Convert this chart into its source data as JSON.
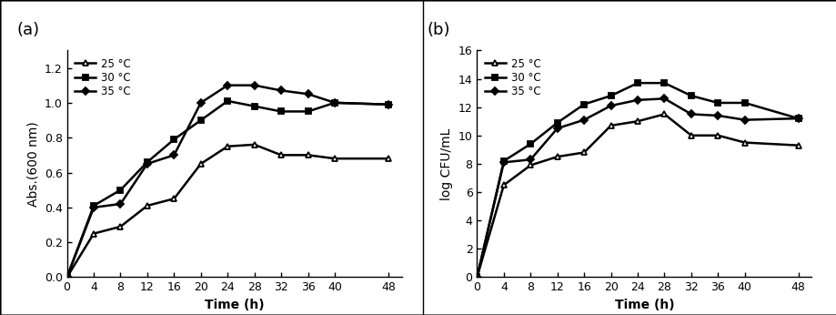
{
  "time_a": [
    0,
    4,
    8,
    12,
    16,
    20,
    24,
    28,
    32,
    36,
    40,
    48
  ],
  "abs_25": [
    0,
    0.25,
    0.29,
    0.41,
    0.45,
    0.65,
    0.75,
    0.76,
    0.7,
    0.7,
    0.68,
    0.68
  ],
  "abs_30": [
    0,
    0.41,
    0.5,
    0.66,
    0.79,
    0.9,
    1.01,
    0.98,
    0.95,
    0.95,
    1.0,
    0.99
  ],
  "abs_35": [
    0,
    0.4,
    0.42,
    0.65,
    0.7,
    1.0,
    1.1,
    1.1,
    1.07,
    1.05,
    1.0,
    0.99
  ],
  "time_b": [
    0,
    4,
    8,
    12,
    16,
    20,
    24,
    28,
    32,
    36,
    40,
    48
  ],
  "cfu_25": [
    0,
    6.5,
    7.9,
    8.5,
    8.8,
    10.7,
    11.0,
    11.5,
    10.0,
    10.0,
    9.5,
    9.3
  ],
  "cfu_30": [
    0,
    8.2,
    9.4,
    10.9,
    12.2,
    12.8,
    13.7,
    13.7,
    12.8,
    12.3,
    12.3,
    11.2
  ],
  "cfu_35": [
    0,
    8.1,
    8.3,
    10.5,
    11.1,
    12.1,
    12.5,
    12.6,
    11.5,
    11.4,
    11.1,
    11.2
  ],
  "ylabel_a": "Abs.(600 nm)",
  "ylabel_b": "log CFU/mL",
  "xlabel": "Time (h)",
  "ylim_a": [
    0,
    1.3
  ],
  "ylim_b": [
    0,
    16
  ],
  "yticks_a": [
    0,
    0.2,
    0.4,
    0.6,
    0.8,
    1.0,
    1.2
  ],
  "yticks_b": [
    0,
    2,
    4,
    6,
    8,
    10,
    12,
    14,
    16
  ],
  "xticks": [
    0,
    4,
    8,
    12,
    16,
    20,
    24,
    28,
    32,
    36,
    40,
    48
  ],
  "legend_25": "25 °C",
  "legend_30": "30 °C",
  "legend_35": "35 °C",
  "label_a": "(a)",
  "label_b": "(b)",
  "color": "#000000"
}
